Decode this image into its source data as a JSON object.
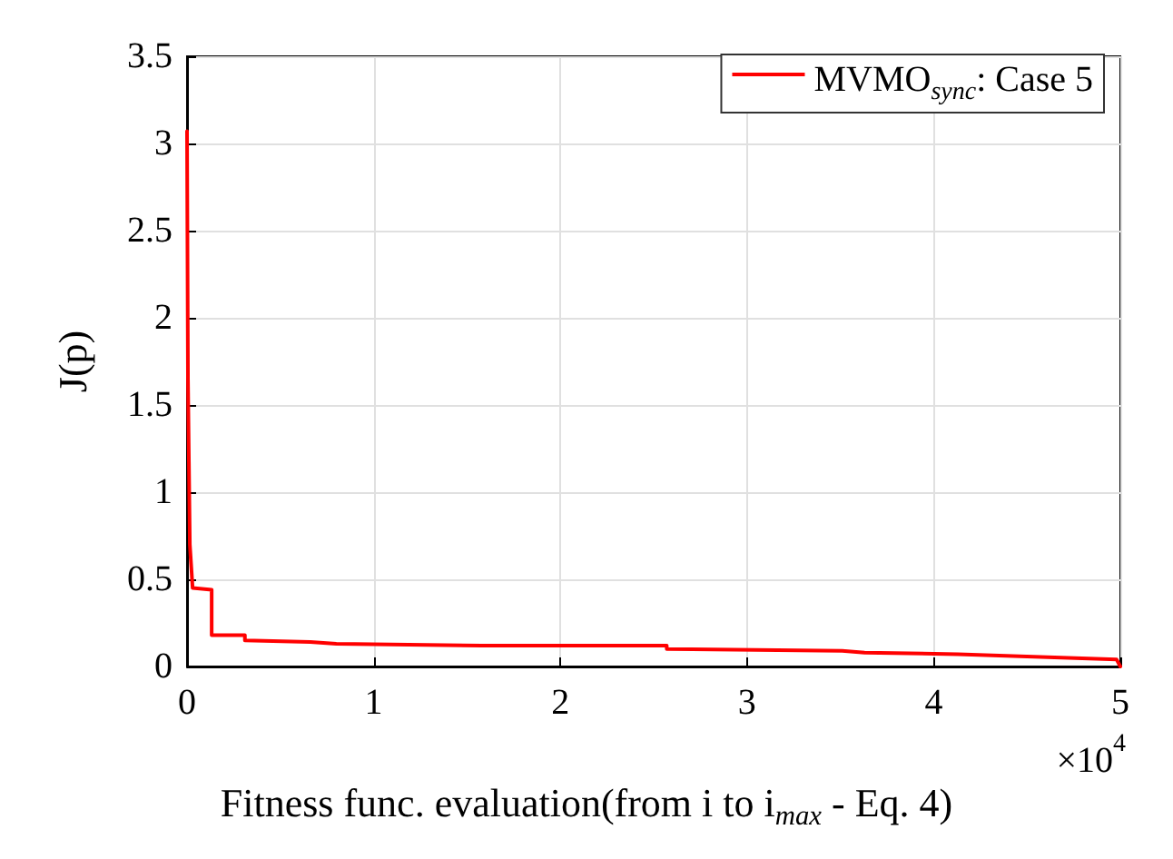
{
  "chart_data": {
    "type": "line",
    "xlabel": "Fitness func. evaluation(from i to i$_{max}$ - Eq. 4)",
    "ylabel": "J(p)",
    "x": [
      0,
      0.005,
      0.015,
      0.03,
      0.132,
      0.132,
      0.31,
      0.31,
      0.66,
      0.8,
      1.58,
      2.57,
      2.57,
      3.51,
      3.63,
      4.13,
      4.98,
      5
    ],
    "series": [
      {
        "name": "MVMO$_{sync}$: Case 5",
        "color": "#ff0000",
        "values": [
          3.07,
          1.65,
          0.7,
          0.45,
          0.44,
          0.18,
          0.18,
          0.15,
          0.14,
          0.13,
          0.12,
          0.12,
          0.1,
          0.09,
          0.08,
          0.07,
          0.04,
          0.0
        ]
      }
    ],
    "xlim": [
      0,
      5
    ],
    "ylim": [
      0,
      3.5
    ],
    "xticks": [
      0,
      1,
      2,
      3,
      4,
      5
    ],
    "yticks": [
      0,
      0.5,
      1,
      1.5,
      2,
      2.5,
      3,
      3.5
    ],
    "annotations": [
      "×10$^{4}$"
    ],
    "grid": true,
    "legend": "top right",
    "marker": "none",
    "line_style": "solid"
  }
}
